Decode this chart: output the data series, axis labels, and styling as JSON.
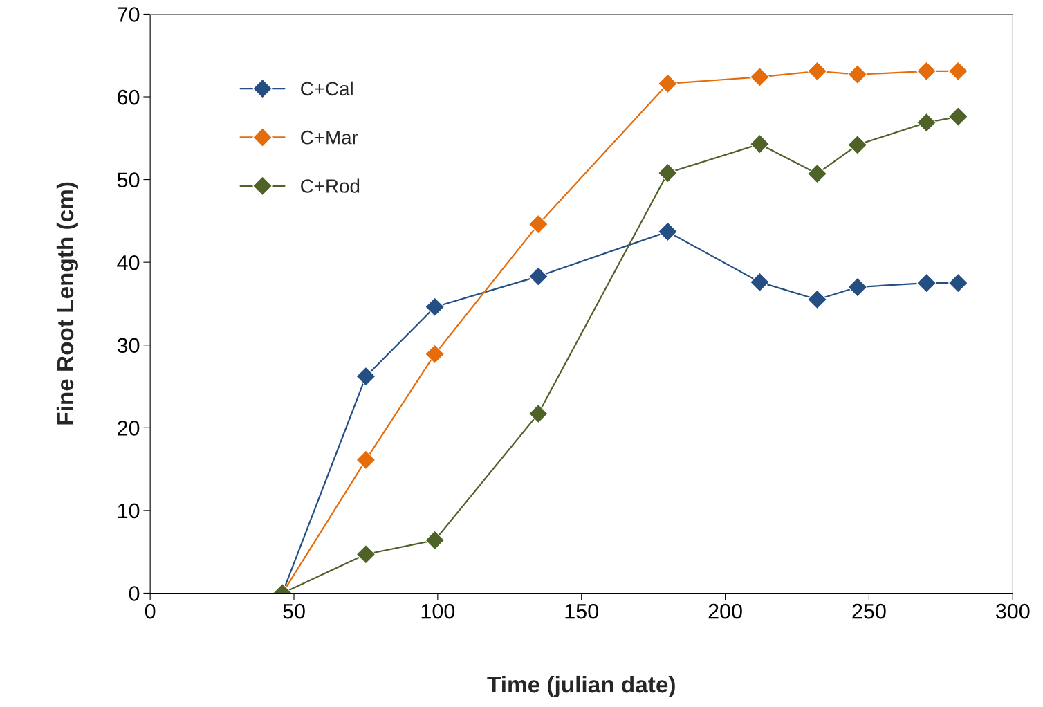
{
  "chart_data": {
    "type": "line",
    "xlabel": "Time (julian date)",
    "ylabel": "Fine Root Length (cm)",
    "x": [
      46,
      75,
      99,
      135,
      180,
      212,
      232,
      246,
      270,
      281
    ],
    "series": [
      {
        "name": "C+Cal",
        "color": "#254e83",
        "values": [
          0,
          26.2,
          34.6,
          38.3,
          43.7,
          37.6,
          35.5,
          37.0,
          37.5,
          37.5
        ]
      },
      {
        "name": "C+Mar",
        "color": "#e46c0a",
        "values": [
          0,
          16.1,
          28.9,
          44.6,
          61.6,
          62.4,
          63.1,
          62.7,
          63.1,
          63.1
        ]
      },
      {
        "name": "C+Rod",
        "color": "#4f6228",
        "values": [
          0,
          4.7,
          6.4,
          21.7,
          50.8,
          54.3,
          50.7,
          54.2,
          56.9,
          57.6
        ]
      }
    ],
    "xlim": [
      0,
      300
    ],
    "xticks": [
      0,
      50,
      100,
      150,
      200,
      250,
      300
    ],
    "ylim": [
      0,
      70
    ],
    "yticks": [
      0,
      10,
      20,
      30,
      40,
      50,
      60,
      70
    ],
    "marker": "diamond",
    "line_style": "solid",
    "grid": false,
    "legend": "top left"
  }
}
